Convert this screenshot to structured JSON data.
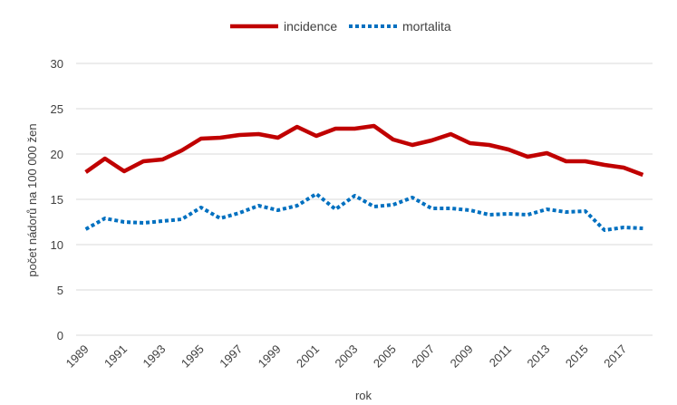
{
  "chart_data": {
    "type": "line",
    "title": "",
    "xlabel": "rok",
    "ylabel": "počet nádorů na 100 000 žen",
    "ylim": [
      0,
      30
    ],
    "yticks": [
      0,
      5,
      10,
      15,
      20,
      25,
      30
    ],
    "xticks": [
      "1989",
      "1991",
      "1993",
      "1995",
      "1997",
      "1999",
      "2001",
      "2003",
      "2005",
      "2007",
      "2009",
      "2011",
      "2013",
      "2015",
      "2017"
    ],
    "grid": true,
    "legend_position": "top-center",
    "x": [
      1989,
      1990,
      1991,
      1992,
      1993,
      1994,
      1995,
      1996,
      1997,
      1998,
      1999,
      2000,
      2001,
      2002,
      2003,
      2004,
      2005,
      2006,
      2007,
      2008,
      2009,
      2010,
      2011,
      2012,
      2013,
      2014,
      2015,
      2016,
      2017,
      2018
    ],
    "series": [
      {
        "name": "incidence",
        "color": "#c00000",
        "style": "solid",
        "values": [
          18.0,
          19.5,
          18.1,
          19.2,
          19.4,
          20.4,
          21.7,
          21.8,
          22.1,
          22.2,
          21.8,
          23.0,
          22.0,
          22.8,
          22.8,
          23.1,
          21.6,
          21.0,
          21.5,
          22.2,
          21.2,
          21.0,
          20.5,
          19.7,
          20.1,
          19.2,
          19.2,
          18.8,
          18.5,
          17.7
        ]
      },
      {
        "name": "mortalita",
        "color": "#0070c0",
        "style": "dotted",
        "values": [
          11.7,
          12.9,
          12.5,
          12.4,
          12.6,
          12.8,
          14.1,
          12.9,
          13.5,
          14.3,
          13.8,
          14.3,
          15.6,
          13.9,
          15.4,
          14.2,
          14.4,
          15.2,
          14.0,
          14.0,
          13.8,
          13.3,
          13.4,
          13.3,
          13.9,
          13.6,
          13.7,
          11.6,
          11.9,
          11.8
        ]
      }
    ]
  }
}
